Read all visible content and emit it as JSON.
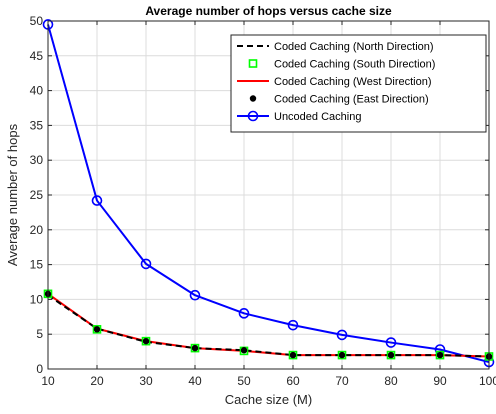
{
  "chart_data": {
    "type": "line",
    "title": "Average number of hops versus cache size",
    "xlabel": "Cache size (M)",
    "ylabel": "Average number of hops",
    "xlim": [
      10,
      100
    ],
    "ylim": [
      0,
      50
    ],
    "xticks": [
      10,
      20,
      30,
      40,
      50,
      60,
      70,
      80,
      90,
      100
    ],
    "yticks": [
      0,
      5,
      10,
      15,
      20,
      25,
      30,
      35,
      40,
      45,
      50
    ],
    "grid": true,
    "legend_position": "top-right",
    "x": [
      10,
      20,
      30,
      40,
      50,
      60,
      70,
      80,
      90,
      100
    ],
    "series": [
      {
        "name": "Coded Caching (North Direction)",
        "color": "#000000",
        "style": "dashed",
        "marker": "none",
        "values": [
          10.6,
          5.8,
          3.9,
          3.0,
          2.7,
          2.0,
          2.0,
          2.0,
          2.0,
          1.8
        ]
      },
      {
        "name": "Coded Caching (South Direction)",
        "color": "#00ff00",
        "style": "none",
        "marker": "square",
        "values": [
          10.8,
          5.7,
          4.0,
          3.0,
          2.6,
          2.0,
          2.0,
          2.0,
          2.0,
          1.8
        ]
      },
      {
        "name": "Coded Caching (West Direction)",
        "color": "#ff0000",
        "style": "solid",
        "marker": "none",
        "values": [
          10.8,
          5.8,
          4.0,
          3.0,
          2.6,
          2.0,
          2.0,
          2.0,
          2.0,
          1.8
        ]
      },
      {
        "name": "Coded Caching (East Direction)",
        "color": "#000000",
        "style": "none",
        "marker": "dot",
        "values": [
          10.8,
          5.7,
          4.0,
          3.0,
          2.7,
          2.0,
          2.0,
          2.0,
          2.0,
          1.8
        ]
      },
      {
        "name": "Uncoded Caching",
        "color": "#0000ff",
        "style": "solid",
        "marker": "circle",
        "values": [
          49.5,
          24.2,
          15.1,
          10.6,
          8.0,
          6.3,
          4.9,
          3.8,
          2.8,
          1.0
        ]
      }
    ]
  }
}
